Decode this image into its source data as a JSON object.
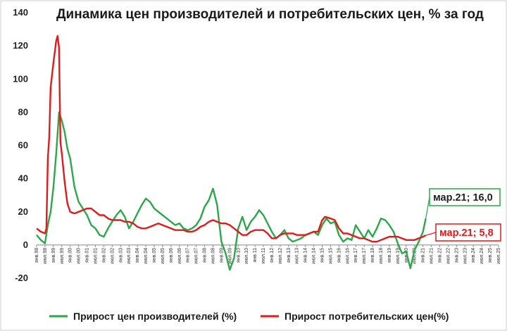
{
  "chart_data": {
    "type": "line",
    "title": "Динамика цен производителей и потребительских цен, % за год",
    "xlabel": "",
    "ylabel": "",
    "ylim": [
      -20,
      140
    ],
    "yticks": [
      "-20",
      "0",
      "20",
      "40",
      "60",
      "80",
      "100",
      "120",
      "140"
    ],
    "grid": false,
    "legend_position": "bottom",
    "x_start": "янв.98",
    "x_end": "июл.25",
    "x_tick_labels": [
      "янв.98",
      "июл.98",
      "янв.99",
      "июл.99",
      "янв.00",
      "июл.00",
      "янв.01",
      "июл.01",
      "янв.02",
      "июл.02",
      "янв.03",
      "июл.03",
      "янв.04",
      "июл.04",
      "янв.05",
      "июл.05",
      "янв.06",
      "июл.06",
      "янв.07",
      "июл.07",
      "янв.08",
      "июл.08",
      "янв.09",
      "июл.09",
      "янв.10",
      "июл.10",
      "янв.11",
      "июл.11",
      "янв.12",
      "июл.12",
      "янв.13",
      "июл.13",
      "янв.14",
      "июл.14",
      "янв.15",
      "июл.15",
      "янв.16",
      "июл.16",
      "янв.17",
      "июл.17",
      "янв.18",
      "июл.18",
      "янв.19",
      "июл.19",
      "янв.20",
      "июл.20",
      "янв.21",
      "июл.21",
      "янв.22",
      "июл.22",
      "янв.23",
      "июл.23",
      "янв.24",
      "июл.24",
      "янв.25",
      "июл.25"
    ],
    "series": [
      {
        "name": "Прирост цен производителей (%)",
        "color": "#2aa84a",
        "points": [
          [
            "янв.98",
            6
          ],
          [
            "апр.98",
            3
          ],
          [
            "июл.98",
            1
          ],
          [
            "сен.98",
            12
          ],
          [
            "ноя.98",
            20
          ],
          [
            "янв.99",
            35
          ],
          [
            "мар.99",
            55
          ],
          [
            "май.99",
            80
          ],
          [
            "июл.99",
            75
          ],
          [
            "сен.99",
            68
          ],
          [
            "ноя.99",
            58
          ],
          [
            "янв.00",
            52
          ],
          [
            "апр.00",
            35
          ],
          [
            "июл.00",
            26
          ],
          [
            "окт.00",
            22
          ],
          [
            "янв.01",
            18
          ],
          [
            "апр.01",
            12
          ],
          [
            "июл.01",
            10
          ],
          [
            "окт.01",
            6
          ],
          [
            "янв.02",
            5
          ],
          [
            "апр.02",
            10
          ],
          [
            "июл.02",
            14
          ],
          [
            "окт.02",
            18
          ],
          [
            "янв.03",
            21
          ],
          [
            "апр.03",
            17
          ],
          [
            "июл.03",
            10
          ],
          [
            "окт.03",
            14
          ],
          [
            "янв.04",
            19
          ],
          [
            "апр.04",
            24
          ],
          [
            "июл.04",
            28
          ],
          [
            "окт.04",
            26
          ],
          [
            "янв.05",
            22
          ],
          [
            "апр.05",
            20
          ],
          [
            "июл.05",
            18
          ],
          [
            "окт.05",
            16
          ],
          [
            "янв.06",
            14
          ],
          [
            "апр.06",
            12
          ],
          [
            "июл.06",
            13
          ],
          [
            "окт.06",
            10
          ],
          [
            "янв.07",
            9
          ],
          [
            "апр.07",
            10
          ],
          [
            "июл.07",
            12
          ],
          [
            "окт.07",
            16
          ],
          [
            "янв.08",
            23
          ],
          [
            "апр.08",
            27
          ],
          [
            "июл.08",
            34
          ],
          [
            "окт.08",
            24
          ],
          [
            "янв.09",
            2
          ],
          [
            "апр.09",
            -5
          ],
          [
            "июл.09",
            -15
          ],
          [
            "окт.09",
            -8
          ],
          [
            "янв.10",
            10
          ],
          [
            "апр.10",
            17
          ],
          [
            "июл.10",
            9
          ],
          [
            "окт.10",
            14
          ],
          [
            "янв.11",
            17
          ],
          [
            "апр.11",
            21
          ],
          [
            "июл.11",
            18
          ],
          [
            "окт.11",
            13
          ],
          [
            "янв.12",
            8
          ],
          [
            "апр.12",
            4
          ],
          [
            "июл.12",
            6
          ],
          [
            "окт.12",
            9
          ],
          [
            "янв.13",
            4
          ],
          [
            "апр.13",
            2
          ],
          [
            "июл.13",
            3
          ],
          [
            "окт.13",
            4
          ],
          [
            "янв.14",
            6
          ],
          [
            "апр.14",
            7
          ],
          [
            "июл.14",
            8
          ],
          [
            "окт.14",
            6
          ],
          [
            "янв.15",
            12
          ],
          [
            "апр.15",
            16
          ],
          [
            "июл.15",
            13
          ],
          [
            "окт.15",
            14
          ],
          [
            "янв.16",
            6
          ],
          [
            "апр.16",
            2
          ],
          [
            "июл.16",
            4
          ],
          [
            "окт.16",
            3
          ],
          [
            "янв.17",
            12
          ],
          [
            "апр.17",
            8
          ],
          [
            "июл.17",
            4
          ],
          [
            "окт.17",
            9
          ],
          [
            "янв.18",
            5
          ],
          [
            "апр.18",
            10
          ],
          [
            "июл.18",
            16
          ],
          [
            "окт.18",
            15
          ],
          [
            "янв.19",
            12
          ],
          [
            "апр.19",
            8
          ],
          [
            "июл.19",
            1
          ],
          [
            "окт.19",
            -5
          ],
          [
            "янв.20",
            -4
          ],
          [
            "апр.20",
            -14
          ],
          [
            "июл.20",
            -3
          ],
          [
            "окт.20",
            2
          ],
          [
            "янв.21",
            8
          ],
          [
            "мар.21",
            16
          ]
        ]
      },
      {
        "name": "Прирост потребительских цен(%)",
        "color": "#e01b1b",
        "points": [
          [
            "янв.98",
            10
          ],
          [
            "апр.98",
            8
          ],
          [
            "июл.98",
            7
          ],
          [
            "авг.98",
            10
          ],
          [
            "сен.98",
            52
          ],
          [
            "окт.98",
            65
          ],
          [
            "ноя.98",
            95
          ],
          [
            "янв.99",
            110
          ],
          [
            "мар.99",
            123
          ],
          [
            "апр.99",
            126
          ],
          [
            "май.99",
            119
          ],
          [
            "июн.99",
            62
          ],
          [
            "июл.99",
            55
          ],
          [
            "сен.99",
            38
          ],
          [
            "ноя.99",
            25
          ],
          [
            "янв.00",
            20
          ],
          [
            "апр.00",
            19
          ],
          [
            "июл.00",
            20
          ],
          [
            "окт.00",
            21
          ],
          [
            "янв.01",
            22
          ],
          [
            "апр.01",
            22
          ],
          [
            "июл.01",
            20
          ],
          [
            "окт.01",
            18
          ],
          [
            "янв.02",
            18
          ],
          [
            "апр.02",
            16
          ],
          [
            "июл.02",
            15
          ],
          [
            "окт.02",
            15
          ],
          [
            "янв.03",
            15
          ],
          [
            "апр.03",
            14
          ],
          [
            "июл.03",
            14
          ],
          [
            "окт.03",
            13
          ],
          [
            "янв.04",
            11
          ],
          [
            "апр.04",
            10
          ],
          [
            "июл.04",
            10
          ],
          [
            "окт.04",
            11
          ],
          [
            "янв.05",
            12
          ],
          [
            "апр.05",
            13
          ],
          [
            "июл.05",
            12
          ],
          [
            "окт.05",
            11
          ],
          [
            "янв.06",
            10
          ],
          [
            "апр.06",
            9
          ],
          [
            "июл.06",
            9
          ],
          [
            "окт.06",
            9
          ],
          [
            "янв.07",
            8
          ],
          [
            "апр.07",
            8
          ],
          [
            "июл.07",
            9
          ],
          [
            "окт.07",
            11
          ],
          [
            "янв.08",
            12
          ],
          [
            "апр.08",
            14
          ],
          [
            "июл.08",
            15
          ],
          [
            "окт.08",
            14
          ],
          [
            "янв.09",
            13
          ],
          [
            "апр.09",
            13
          ],
          [
            "июл.09",
            12
          ],
          [
            "окт.09",
            10
          ],
          [
            "янв.10",
            8
          ],
          [
            "апр.10",
            6
          ],
          [
            "июл.10",
            6
          ],
          [
            "окт.10",
            8
          ],
          [
            "янв.11",
            9
          ],
          [
            "апр.11",
            9
          ],
          [
            "июл.11",
            9
          ],
          [
            "окт.11",
            7
          ],
          [
            "янв.12",
            4
          ],
          [
            "апр.12",
            4
          ],
          [
            "июл.12",
            6
          ],
          [
            "окт.12",
            7
          ],
          [
            "янв.13",
            7
          ],
          [
            "апр.13",
            7
          ],
          [
            "июл.13",
            6
          ],
          [
            "окт.13",
            6
          ],
          [
            "янв.14",
            6
          ],
          [
            "апр.14",
            7
          ],
          [
            "июл.14",
            8
          ],
          [
            "окт.14",
            8
          ],
          [
            "янв.15",
            15
          ],
          [
            "мар.15",
            17
          ],
          [
            "июл.15",
            16
          ],
          [
            "окт.15",
            15
          ],
          [
            "янв.16",
            10
          ],
          [
            "апр.16",
            7
          ],
          [
            "июл.16",
            7
          ],
          [
            "окт.16",
            6
          ],
          [
            "янв.17",
            5
          ],
          [
            "апр.17",
            4
          ],
          [
            "июл.17",
            4
          ],
          [
            "окт.17",
            3
          ],
          [
            "янв.18",
            2
          ],
          [
            "апр.18",
            2
          ],
          [
            "июл.18",
            3
          ],
          [
            "окт.18",
            4
          ],
          [
            "янв.19",
            5
          ],
          [
            "апр.19",
            5
          ],
          [
            "июл.19",
            5
          ],
          [
            "окт.19",
            4
          ],
          [
            "янв.20",
            3
          ],
          [
            "апр.20",
            3
          ],
          [
            "июл.20",
            3
          ],
          [
            "окт.20",
            4
          ],
          [
            "янв.21",
            5
          ],
          [
            "мар.21",
            5.8
          ]
        ]
      }
    ],
    "annotations": [
      {
        "text": "мар.21; 16,0",
        "series": 0,
        "at": "мар.21",
        "value": 16.0
      },
      {
        "text": "мар.21; 5,8",
        "series": 1,
        "at": "мар.21",
        "value": 5.8
      }
    ]
  }
}
